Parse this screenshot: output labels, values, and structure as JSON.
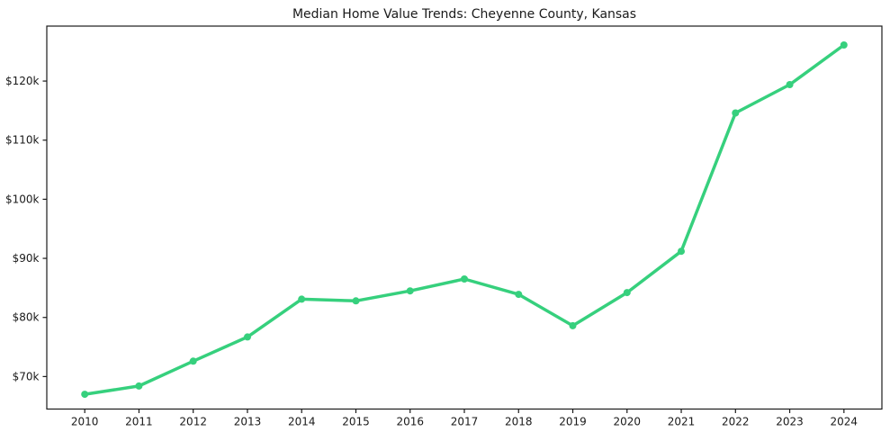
{
  "chart_data": {
    "type": "line",
    "title": "Median Home Value Trends: Cheyenne County, Kansas",
    "xlabel": "",
    "ylabel": "",
    "x": [
      2010,
      2011,
      2012,
      2013,
      2014,
      2015,
      2016,
      2017,
      2018,
      2019,
      2020,
      2021,
      2022,
      2023,
      2024
    ],
    "xtick_labels": [
      "2010",
      "2011",
      "2012",
      "2013",
      "2014",
      "2015",
      "2016",
      "2017",
      "2018",
      "2019",
      "2020",
      "2021",
      "2022",
      "2023",
      "2024"
    ],
    "series": [
      {
        "name": "Median Home Value",
        "values": [
          67000,
          68400,
          72600,
          76700,
          83100,
          82800,
          84500,
          86500,
          83900,
          78600,
          84200,
          91200,
          114600,
          119400,
          126100
        ]
      }
    ],
    "yticks": {
      "values": [
        70000,
        80000,
        90000,
        100000,
        110000,
        120000
      ],
      "labels": [
        "$70k",
        "$80k",
        "$90k",
        "$100k",
        "$110k",
        "$120k"
      ]
    },
    "xlim": [
      2009.3,
      2024.7
    ],
    "ylim": [
      64500,
      129300
    ],
    "grid": false,
    "legend": "none",
    "colors": {
      "line": "#36d07d",
      "marker": "#36d07d",
      "text": "#1a1a1a",
      "spine": "#1a1a1a",
      "background": "#ffffff"
    }
  }
}
